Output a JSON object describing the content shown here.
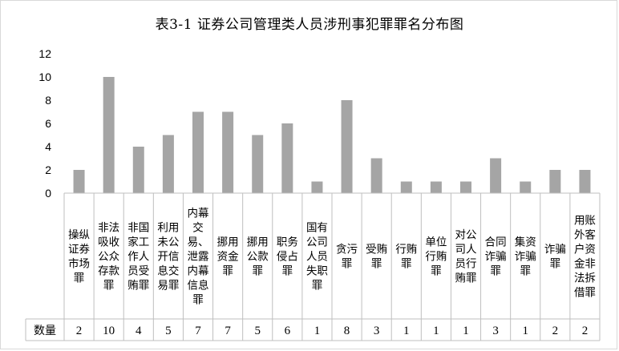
{
  "chart_data": {
    "type": "bar",
    "title": "表3-1 证券公司管理类人员涉刑事犯罪罪名分布图",
    "categories": [
      "操纵证券市场罪",
      "非法吸收公众存款罪",
      "非国家工作人员受贿罪",
      "利用未公开信息交易罪",
      "内幕交易、泄露内幕信息罪",
      "挪用资金罪",
      "挪用公款罪",
      "职务侵占罪",
      "国有公司人员失职罪",
      "贪污罪",
      "受贿罪",
      "行贿罪",
      "单位行贿罪",
      "对公司人员行贿罪",
      "合同诈骗罪",
      "集资诈骗罪",
      "诈骗罪",
      "用账外客户资金非法拆借罪"
    ],
    "category_lines": [
      [
        "操纵",
        "证券",
        "市场",
        "罪"
      ],
      [
        "非法",
        "吸收",
        "公众",
        "存款",
        "罪"
      ],
      [
        "非国",
        "家工",
        "作人",
        "员受",
        "贿罪"
      ],
      [
        "利用",
        "未公",
        "开信",
        "息交",
        "易罪"
      ],
      [
        "内幕",
        "交",
        "易、",
        "泄露",
        "内幕",
        "信息",
        "罪"
      ],
      [
        "挪用",
        "资金",
        "罪"
      ],
      [
        "挪用",
        "公款",
        "罪"
      ],
      [
        "职务",
        "侵占",
        "罪"
      ],
      [
        "国有",
        "公司",
        "人员",
        "失职",
        "罪"
      ],
      [
        "贪污",
        "罪"
      ],
      [
        "受贿",
        "罪"
      ],
      [
        "行贿",
        "罪"
      ],
      [
        "单位",
        "行贿",
        "罪"
      ],
      [
        "对公",
        "司人",
        "员行",
        "贿罪"
      ],
      [
        "合同",
        "诈骗",
        "罪"
      ],
      [
        "集资",
        "诈骗",
        "罪"
      ],
      [
        "诈骗",
        "罪"
      ],
      [
        "用账",
        "外客",
        "户资",
        "金非",
        "法拆",
        "借罪"
      ]
    ],
    "series": [
      {
        "name": "数量",
        "values": [
          2,
          10,
          4,
          5,
          7,
          7,
          5,
          6,
          1,
          8,
          3,
          1,
          1,
          1,
          3,
          1,
          2,
          2
        ],
        "color": "#a5a5a5"
      }
    ],
    "yticks": [
      "0",
      "2",
      "4",
      "6",
      "8",
      "10",
      "12"
    ],
    "ylim": [
      0,
      12
    ],
    "grid": false,
    "legend": "data-table-row"
  }
}
